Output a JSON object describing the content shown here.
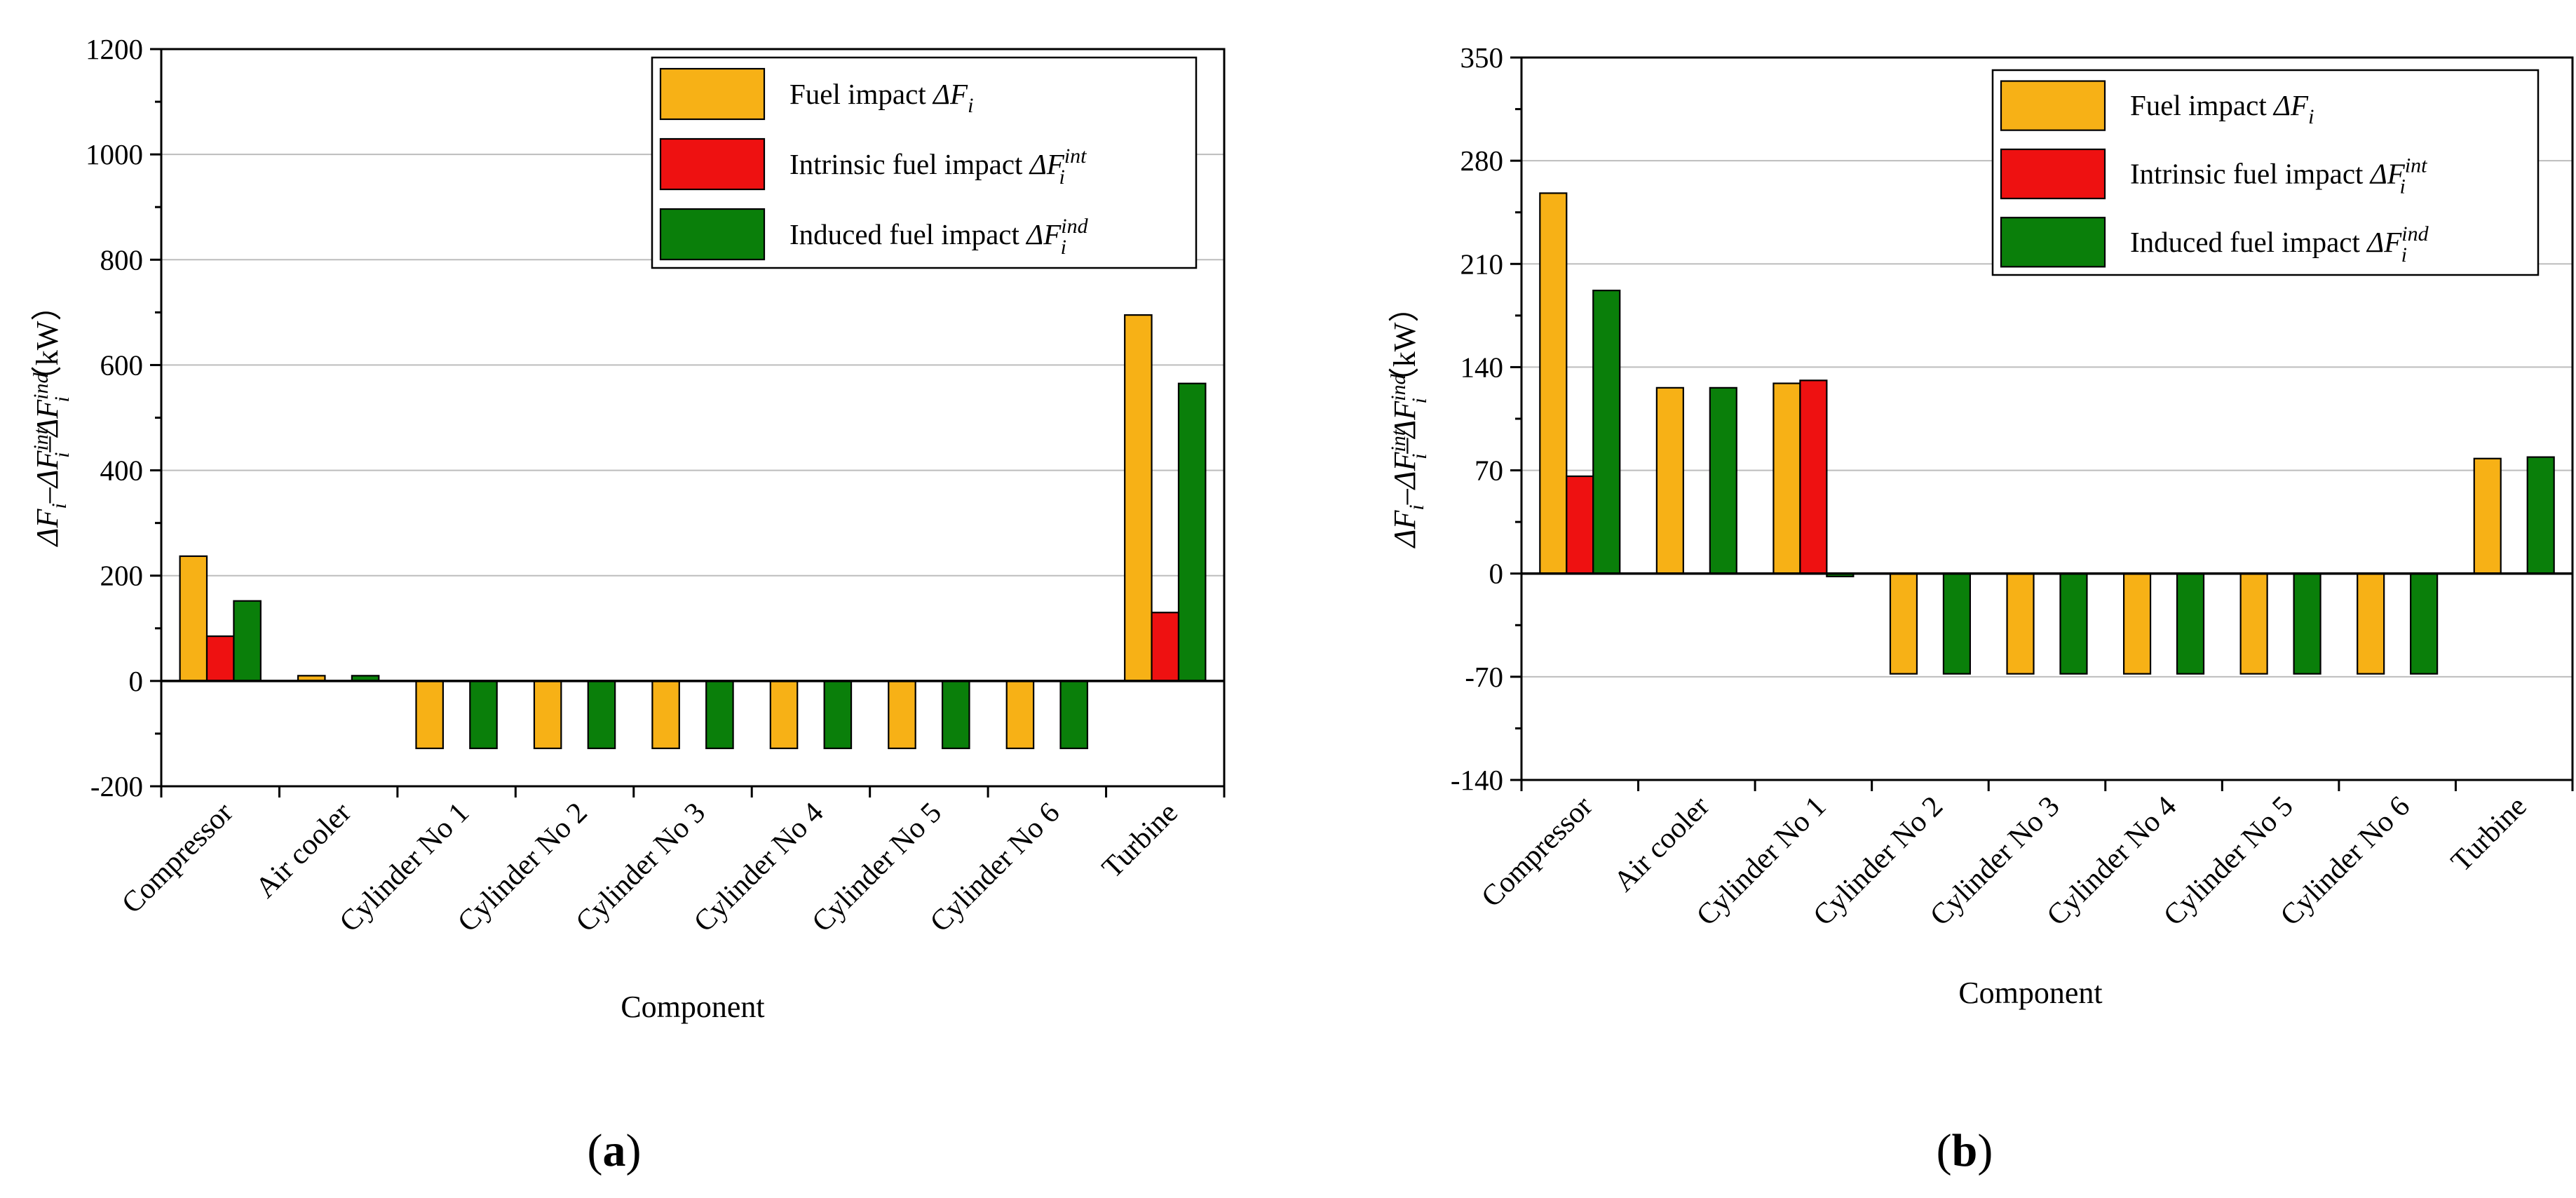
{
  "colors": {
    "fuel": "#F7B116",
    "intrinsic": "#EE1111",
    "induced": "#0A7F0A",
    "grid": "#bdbdbd",
    "axis": "#000000"
  },
  "chart_data": [
    {
      "type": "bar",
      "panel_label": "(a)",
      "panel_label_parts": {
        "open": "(",
        "letter": "a",
        "close": ")"
      },
      "xlabel": "Component",
      "ylabel_unit": "（kW）",
      "ylim": [
        -200,
        1200
      ],
      "yticks": [
        -200,
        0,
        200,
        400,
        600,
        800,
        1000,
        1200
      ],
      "ytick_labels": [
        "-200",
        "0",
        "200",
        "400",
        "600",
        "800",
        "1000",
        "1200"
      ],
      "grid": true,
      "legend_position": "top-right",
      "categories": [
        "Compressor",
        "Air cooler",
        "Cylinder No 1",
        "Cylinder No 2",
        "Cylinder No 3",
        "Cylinder No 4",
        "Cylinder No 5",
        "Cylinder No 6",
        "Turbine"
      ],
      "series": [
        {
          "key": "fuel",
          "name": "Fuel impact ΔF",
          "sub": "i",
          "sup": "",
          "values": [
            237,
            10,
            -128,
            -128,
            -128,
            -128,
            -128,
            -128,
            695
          ]
        },
        {
          "key": "intrinsic",
          "name": "Intrinsic fuel impact ΔF",
          "sub": "i",
          "sup": "int",
          "values": [
            85,
            0,
            0,
            0,
            0,
            0,
            0,
            0,
            130
          ]
        },
        {
          "key": "induced",
          "name": "Induced fuel impact ΔF",
          "sub": "i",
          "sup": "ind",
          "values": [
            152,
            10,
            -128,
            -128,
            -128,
            -128,
            -128,
            -128,
            565
          ]
        }
      ]
    },
    {
      "type": "bar",
      "panel_label": "(b)",
      "panel_label_parts": {
        "open": "(",
        "letter": "b",
        "close": ")"
      },
      "xlabel": "Component",
      "ylabel_unit": "（kW）",
      "ylim": [
        -140,
        350
      ],
      "yticks": [
        -140,
        -70,
        0,
        70,
        140,
        210,
        280,
        350
      ],
      "ytick_labels": [
        "-140",
        "-70",
        "0",
        "70",
        "140",
        "210",
        "280",
        "350"
      ],
      "grid": true,
      "legend_position": "top-right",
      "categories": [
        "Compressor",
        "Air cooler",
        "Cylinder No 1",
        "Cylinder No 2",
        "Cylinder No 3",
        "Cylinder No 4",
        "Cylinder No 5",
        "Cylinder No 6",
        "Turbine"
      ],
      "series": [
        {
          "key": "fuel",
          "name": "Fuel impact ΔF",
          "sub": "i",
          "sup": "",
          "values": [
            258,
            126,
            129,
            -68,
            -68,
            -68,
            -68,
            -68,
            78
          ]
        },
        {
          "key": "intrinsic",
          "name": "Intrinsic fuel impact ΔF",
          "sub": "i",
          "sup": "int",
          "values": [
            66,
            0,
            131,
            0,
            0,
            0,
            0,
            0,
            0
          ]
        },
        {
          "key": "induced",
          "name": "Induced fuel impact ΔF",
          "sub": "i",
          "sup": "ind",
          "values": [
            192,
            126,
            -2,
            -68,
            -68,
            -68,
            -68,
            -68,
            79
          ]
        }
      ]
    }
  ]
}
